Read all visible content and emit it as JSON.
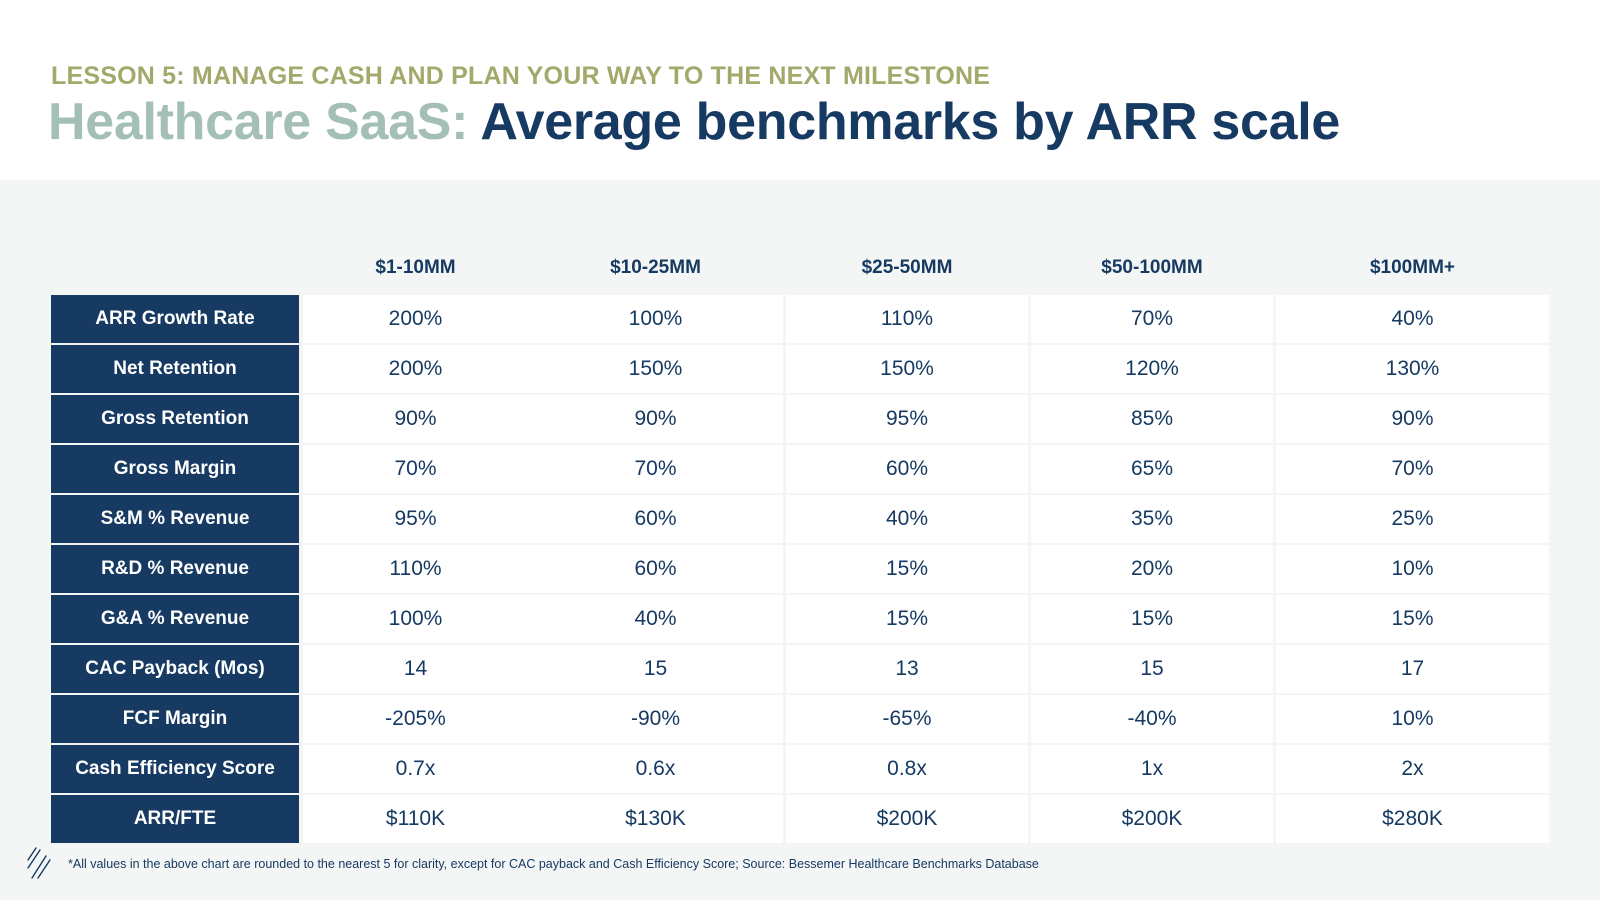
{
  "header": {
    "lesson": "LESSON 5: MANAGE CASH AND PLAN YOUR WAY TO THE NEXT MILESTONE",
    "title_prefix": "Healthcare SaaS:",
    "title_main": "Average benchmarks by ARR scale"
  },
  "table": {
    "columns": [
      "$1-10MM",
      "$10-25MM",
      "$25-50MM",
      "$50-100MM",
      "$100MM+"
    ],
    "rows": [
      {
        "label": "ARR Growth Rate",
        "values": [
          "200%",
          "100%",
          "110%",
          "70%",
          "40%"
        ]
      },
      {
        "label": "Net Retention",
        "values": [
          "200%",
          "150%",
          "150%",
          "120%",
          "130%"
        ]
      },
      {
        "label": "Gross Retention",
        "values": [
          "90%",
          "90%",
          "95%",
          "85%",
          "90%"
        ]
      },
      {
        "label": "Gross Margin",
        "values": [
          "70%",
          "70%",
          "60%",
          "65%",
          "70%"
        ]
      },
      {
        "label": "S&M % Revenue",
        "values": [
          "95%",
          "60%",
          "40%",
          "35%",
          "25%"
        ]
      },
      {
        "label": "R&D % Revenue",
        "values": [
          "110%",
          "60%",
          "15%",
          "20%",
          "10%"
        ]
      },
      {
        "label": "G&A % Revenue",
        "values": [
          "100%",
          "40%",
          "15%",
          "15%",
          "15%"
        ]
      },
      {
        "label": "CAC Payback (Mos)",
        "values": [
          "14",
          "15",
          "13",
          "15",
          "17"
        ]
      },
      {
        "label": "FCF Margin",
        "values": [
          "-205%",
          "-90%",
          "-65%",
          "-40%",
          "10%"
        ]
      },
      {
        "label": "Cash Efficiency Score",
        "values": [
          "0.7x",
          "0.6x",
          "0.8x",
          "1x",
          "2x"
        ]
      },
      {
        "label": "ARR/FTE",
        "values": [
          "$110K",
          "$130K",
          "$200K",
          "$200K",
          "$280K"
        ]
      }
    ]
  },
  "footer": {
    "note": "*All values in the above chart are rounded to the nearest 5 for clarity, except for CAC payback and Cash Efficiency Score; Source: Bessemer Healthcare Benchmarks Database",
    "logo_icon": "bessemer-logo-icon"
  },
  "colors": {
    "navy": "#163a62",
    "lesson_olive": "#a3a86b",
    "title_sage": "#a4bfb6",
    "panel_bg": "#f4f6f5"
  }
}
